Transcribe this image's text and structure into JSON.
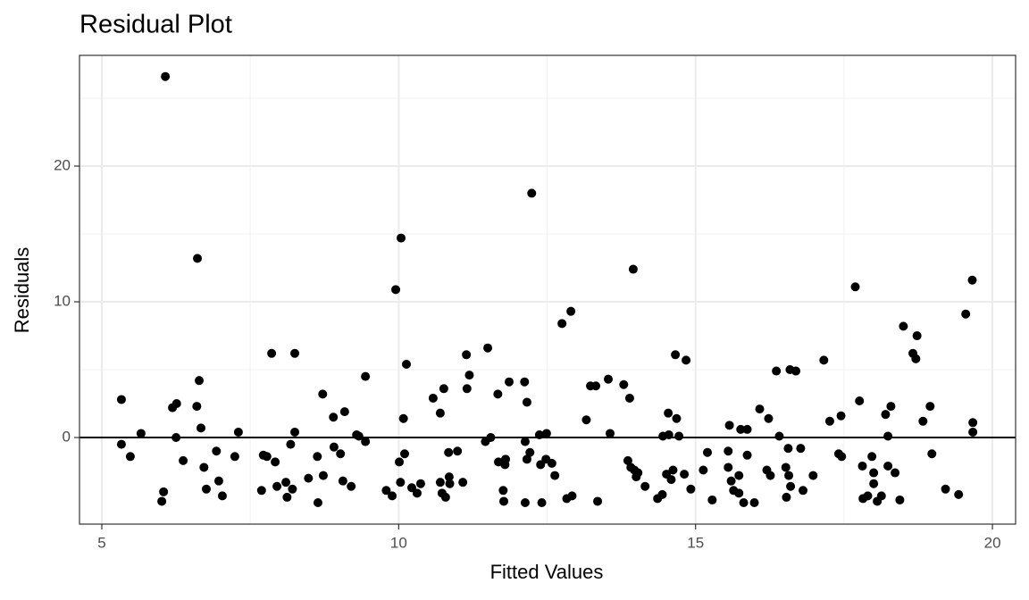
{
  "chart_data": {
    "type": "scatter",
    "title": "Residual Plot",
    "x_label": "Fitted Values",
    "y_label": "Residuals",
    "xlim": [
      4.624,
      20.39
    ],
    "ylim": [
      -6.38,
      28.16
    ],
    "xticks": [
      5,
      10,
      15,
      20
    ],
    "yticks": [
      0,
      10,
      20
    ],
    "x_minor_grid": [
      7.5,
      12.5,
      17.5
    ],
    "y_minor_grid": [
      5,
      15,
      25
    ],
    "grid": true,
    "hline": 0,
    "color": "#000000",
    "x": [
      6.07,
      5.33,
      5.33,
      5.48,
      5.66,
      6.01,
      6.04,
      6.19,
      6.26,
      6.25,
      6.37,
      6.61,
      6.6,
      6.64,
      6.67,
      6.72,
      6.76,
      6.93,
      6.97,
      7.03,
      7.24,
      7.3,
      7.69,
      7.72,
      7.78,
      7.86,
      7.92,
      7.95,
      8.1,
      8.12,
      8.21,
      8.18,
      8.25,
      8.25,
      8.48,
      8.63,
      8.64,
      8.72,
      8.73,
      8.9,
      8.91,
      9.02,
      9.06,
      9.09,
      9.2,
      9.29,
      9.33,
      9.44,
      9.44,
      9.79,
      9.89,
      9.95,
      10.01,
      10.04,
      10.03,
      10.08,
      10.1,
      10.13,
      10.22,
      10.31,
      10.37,
      10.58,
      10.7,
      10.7,
      10.73,
      10.76,
      10.79,
      10.84,
      10.85,
      10.86,
      10.99,
      11.08,
      11.14,
      11.15,
      11.19,
      11.46,
      11.5,
      11.55,
      11.67,
      11.68,
      11.76,
      11.77,
      11.79,
      11.8,
      11.86,
      12.12,
      12.13,
      12.13,
      12.16,
      12.16,
      12.21,
      12.24,
      12.39,
      12.37,
      12.41,
      12.49,
      12.48,
      12.58,
      12.63,
      12.75,
      12.83,
      12.9,
      12.92,
      13.16,
      13.23,
      13.32,
      13.35,
      13.53,
      13.56,
      13.79,
      13.86,
      13.89,
      13.91,
      13.95,
      13.97,
      14.0,
      14.03,
      14.15,
      14.36,
      14.44,
      14.45,
      14.51,
      14.54,
      14.55,
      14.59,
      14.62,
      14.66,
      14.68,
      14.72,
      14.81,
      14.84,
      14.92,
      15.13,
      15.2,
      15.28,
      15.55,
      15.57,
      15.55,
      15.6,
      15.64,
      15.73,
      15.73,
      15.76,
      15.81,
      15.87,
      15.87,
      15.99,
      16.08,
      16.2,
      16.23,
      16.26,
      16.36,
      16.41,
      16.52,
      16.53,
      16.56,
      16.57,
      16.59,
      16.6,
      16.69,
      16.77,
      16.81,
      16.98,
      17.16,
      17.26,
      17.41,
      17.45,
      17.46,
      17.69,
      17.76,
      17.81,
      17.82,
      17.9,
      17.97,
      18.0,
      18.0,
      18.06,
      18.13,
      18.2,
      18.24,
      18.24,
      18.29,
      18.36,
      18.44,
      18.5,
      18.66,
      18.71,
      18.73,
      18.83,
      18.95,
      18.98,
      19.21,
      19.43,
      19.55,
      19.66,
      19.67,
      19.67
    ],
    "y": [
      26.6,
      2.8,
      -0.5,
      -1.4,
      0.3,
      -4.7,
      -4.0,
      2.2,
      2.5,
      0,
      -1.7,
      13.2,
      2.3,
      4.2,
      0.7,
      -2.2,
      -3.8,
      -1.0,
      -3.2,
      -4.3,
      -1.4,
      0.4,
      -3.9,
      -1.3,
      -1.4,
      6.2,
      -1.8,
      -3.6,
      -3.3,
      -4.4,
      -3.8,
      -0.5,
      0.4,
      6.2,
      -3.0,
      -1.4,
      -4.8,
      3.2,
      -2.8,
      1.5,
      -0.7,
      -1.2,
      -3.2,
      1.9,
      -3.6,
      0.2,
      0.1,
      4.5,
      -0.3,
      -3.9,
      -4.3,
      10.9,
      -1.8,
      14.7,
      -3.3,
      1.4,
      -1.2,
      5.4,
      -3.7,
      -4.1,
      -3.4,
      2.9,
      1.8,
      -3.3,
      -4.1,
      3.6,
      -4.4,
      -1.1,
      -2.9,
      -3.4,
      -1.0,
      -3.3,
      6.1,
      3.6,
      4.6,
      -0.3,
      6.6,
      0,
      3.2,
      -1.8,
      -3.9,
      -4.7,
      -2.0,
      -1.6,
      4.1,
      4.1,
      -0.3,
      -4.8,
      2.6,
      -1.6,
      -1.1,
      18.0,
      -2.0,
      0.2,
      -4.8,
      0.3,
      -1.6,
      -1.9,
      -2.8,
      8.4,
      -4.5,
      9.3,
      -4.3,
      1.3,
      3.8,
      3.8,
      -4.7,
      4.3,
      0.3,
      3.9,
      -1.7,
      2.9,
      -2.2,
      12.4,
      -2.4,
      -2.9,
      -2.6,
      -3.6,
      -4.5,
      -4.2,
      0.1,
      -2.7,
      1.8,
      0.2,
      -3.1,
      -2.4,
      6.1,
      1.4,
      0.1,
      -2.7,
      5.7,
      -3.8,
      -2.4,
      -1.1,
      -4.6,
      -1.0,
      0.9,
      -2.2,
      -3.2,
      -3.9,
      -2.8,
      -4.1,
      0.6,
      -4.8,
      -1.3,
      0.6,
      -4.8,
      2.1,
      -2.4,
      1.4,
      -2.8,
      4.9,
      0.1,
      -2.2,
      -4.4,
      -0.8,
      -2.8,
      5.0,
      -3.6,
      4.9,
      -0.8,
      -3.9,
      -2.8,
      5.7,
      1.2,
      -1.2,
      1.6,
      -1.4,
      11.1,
      2.7,
      -2.1,
      -4.5,
      -4.3,
      -1.4,
      -3.4,
      -2.6,
      -4.7,
      -4.3,
      1.7,
      0.1,
      -2.1,
      2.3,
      -2.6,
      -4.6,
      8.2,
      6.2,
      5.8,
      7.5,
      1.2,
      2.3,
      -1.2,
      -3.8,
      -4.2,
      9.1,
      11.6,
      1.1,
      0.4
    ]
  }
}
